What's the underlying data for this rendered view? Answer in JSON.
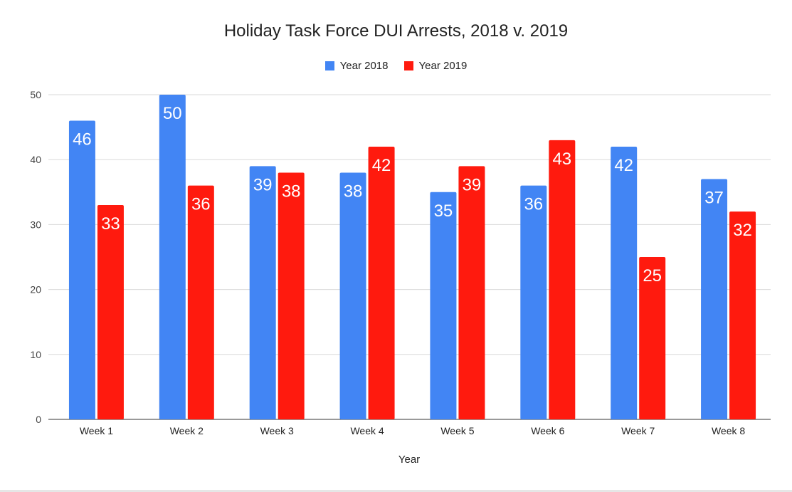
{
  "chart_data": {
    "type": "bar",
    "title": "Holiday Task Force DUI Arrests, 2018 v. 2019",
    "xlabel": "Year",
    "ylabel": "",
    "ylim": [
      0,
      50
    ],
    "yticks": [
      0,
      10,
      20,
      30,
      40,
      50
    ],
    "grid": true,
    "legend_position": "top-center",
    "categories": [
      "Week 1",
      "Week 2",
      "Week 3",
      "Week 4",
      "Week 5",
      "Week 6",
      "Week 7",
      "Week 8"
    ],
    "series": [
      {
        "name": "Year 2018",
        "color": "#4285f4",
        "values": [
          46,
          50,
          39,
          38,
          35,
          36,
          42,
          37
        ]
      },
      {
        "name": "Year 2019",
        "color": "#ff1a0e",
        "values": [
          33,
          36,
          38,
          42,
          39,
          43,
          25,
          32
        ]
      }
    ]
  }
}
